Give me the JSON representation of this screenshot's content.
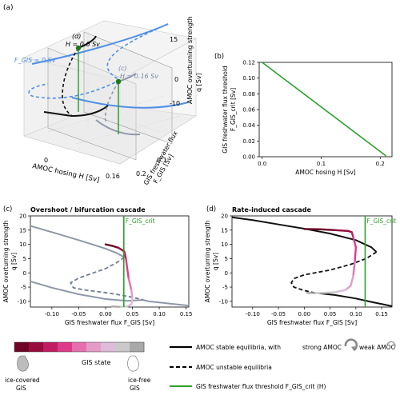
{
  "panel_a": {
    "label": "(a)",
    "z_axis_label_1": "AMOC overturning strength",
    "z_axis_label_2": "q [Sv]",
    "z_ticks": [
      "15",
      "0",
      "-10"
    ],
    "x_axis_label": "AMOC hosing H [Sv]",
    "x_ticks": [
      "0",
      "0.16"
    ],
    "y_axis_label_1": "GIS freshwater flux",
    "y_axis_label_2": "F_GIS [Sv]",
    "y_ticks": [
      "0.1",
      "0.2"
    ],
    "annot_d": "(d)",
    "annot_d_h": "H = 0.0 Sv",
    "annot_c": "(c)",
    "annot_c_h": "H = 0.16 Sv",
    "annot_fgis": "F_GIS = 0 Sv"
  },
  "chart_data": [
    {
      "id": "b",
      "type": "line",
      "label": "(b)",
      "xlabel": "AMOC hosing H [Sv]",
      "ylabel_1": "GIS freshwater flux threshold",
      "ylabel_2": "F_GIS_crit [Sv]",
      "xlim": [
        -0.005,
        0.22
      ],
      "ylim": [
        0,
        0.12
      ],
      "xticks": [
        0.0,
        0.1,
        0.2
      ],
      "yticks": [
        0.0,
        0.02,
        0.04,
        0.06,
        0.08,
        0.1,
        0.12
      ],
      "series": [
        {
          "color": "#2ca02c",
          "x": [
            0.0,
            0.21
          ],
          "y": [
            0.12,
            0.001
          ]
        }
      ]
    },
    {
      "id": "c",
      "type": "line",
      "label": "(c)",
      "title": "Overshoot / bifurcation cascade",
      "xlabel": "GIS freshwater flux F_GIS [Sv]",
      "ylabel_1": "AMOC overturning strength",
      "ylabel_2": "q [Sv]",
      "xlim": [
        -0.14,
        0.155
      ],
      "ylim": [
        -12,
        20
      ],
      "xticks": [
        -0.1,
        -0.05,
        0.0,
        0.05,
        0.1,
        0.15
      ],
      "yticks": [
        -10,
        -5,
        0,
        5,
        10,
        15,
        20
      ],
      "stable_upper": {
        "x": [
          -0.14,
          -0.1,
          -0.05,
          0.0,
          0.02,
          0.035
        ],
        "y": [
          16.5,
          14.3,
          11.5,
          8.5,
          7.0,
          5.5
        ]
      },
      "unstable": {
        "x": [
          0.035,
          0.02,
          0.0,
          -0.03,
          -0.05,
          -0.065,
          -0.06,
          -0.04,
          -0.01,
          0.02,
          0.04,
          0.06,
          0.07
        ],
        "y": [
          5.5,
          3.5,
          1.5,
          -0.5,
          -1.8,
          -3.5,
          -5.2,
          -6.0,
          -6.7,
          -7.5,
          -8.2,
          -9.0,
          -9.5
        ]
      },
      "stable_lower": {
        "x": [
          0.07,
          0.08,
          0.1,
          0.12,
          0.155
        ],
        "y": [
          -9.5,
          -10.0,
          -10.4,
          -10.8,
          -11.5
        ]
      },
      "stable_lower_left": {
        "x": [
          -0.14,
          -0.1,
          -0.05,
          0.0,
          0.04,
          0.07
        ],
        "y": [
          -3.0,
          -5.2,
          -7.5,
          -9.2,
          -9.8,
          -9.5
        ]
      },
      "trajectory": {
        "x": [
          0.0,
          0.012,
          0.024,
          0.035,
          0.038,
          0.04,
          0.043,
          0.048,
          0.05,
          0.048,
          0.04,
          0.025,
          0.012
        ],
        "y": [
          10.0,
          9.5,
          8.8,
          7.5,
          5.0,
          2.0,
          -2.0,
          -6.0,
          -9.0,
          -11.0,
          -11.8,
          -11.9,
          -11.8
        ]
      },
      "threshold_x": 0.034,
      "threshold_label": "F_GIS_crit"
    },
    {
      "id": "d",
      "type": "line",
      "label": "(d)",
      "title": "Rate-induced cascade",
      "xlabel": "GIS freshwater flux F_GIS [Sv]",
      "ylabel_1": "AMOC overturning strength",
      "ylabel_2": "q [Sv]",
      "xlim": [
        -0.14,
        0.17
      ],
      "ylim": [
        -12,
        20
      ],
      "xticks": [
        -0.1,
        -0.05,
        0.0,
        0.05,
        0.1,
        0.15
      ],
      "yticks": [
        -10,
        -5,
        0,
        5,
        10,
        15,
        20
      ],
      "stable_upper": {
        "x": [
          -0.14,
          -0.1,
          -0.05,
          0.0,
          0.05,
          0.1,
          0.13,
          0.14
        ],
        "y": [
          19.5,
          18.5,
          17.0,
          15.5,
          13.8,
          11.5,
          9.0,
          7.3
        ]
      },
      "unstable": {
        "x": [
          0.14,
          0.12,
          0.09,
          0.05,
          0.0,
          -0.02,
          -0.025,
          -0.02,
          0.0,
          0.02,
          0.03
        ],
        "y": [
          7.3,
          5.0,
          3.0,
          1.0,
          -0.7,
          -2.0,
          -3.5,
          -5.0,
          -6.2,
          -7.0,
          -7.2
        ]
      },
      "stable_lower": {
        "x": [
          0.03,
          0.06,
          0.1,
          0.13,
          0.17
        ],
        "y": [
          -7.2,
          -7.8,
          -9.0,
          -10.2,
          -11.7
        ]
      },
      "trajectory": {
        "x": [
          0.0,
          0.03,
          0.06,
          0.085,
          0.092,
          0.095,
          0.1,
          0.098,
          0.095,
          0.09,
          0.08,
          0.06,
          0.04,
          0.02,
          0.005
        ],
        "y": [
          15.4,
          15.3,
          15.0,
          14.7,
          14.3,
          12.5,
          9.0,
          4.0,
          -1.0,
          -4.5,
          -6.0,
          -6.8,
          -7.0,
          -7.1,
          -7.0
        ]
      },
      "threshold_x": 0.118,
      "threshold_label": "F_GIS_crit"
    }
  ],
  "legend": {
    "colorbar_colors": [
      "#6e0526",
      "#970d3e",
      "#c11c63",
      "#df3a8a",
      "#e56fae",
      "#e59bc8",
      "#dcbcd8",
      "#c9c9c9",
      "#a8a8a8"
    ],
    "gis_state": "GIS state",
    "ice_covered": "ice-covered",
    "ice_free": "ice-free",
    "gis_word": "GIS",
    "stable": "AMOC stable equilibria, with",
    "strong": "strong AMOC",
    "weak": "weak AMOC",
    "unstable": "AMOC unstable equilibria",
    "threshold": "GIS freshwater flux threshold F_GIS_crit (H)"
  }
}
